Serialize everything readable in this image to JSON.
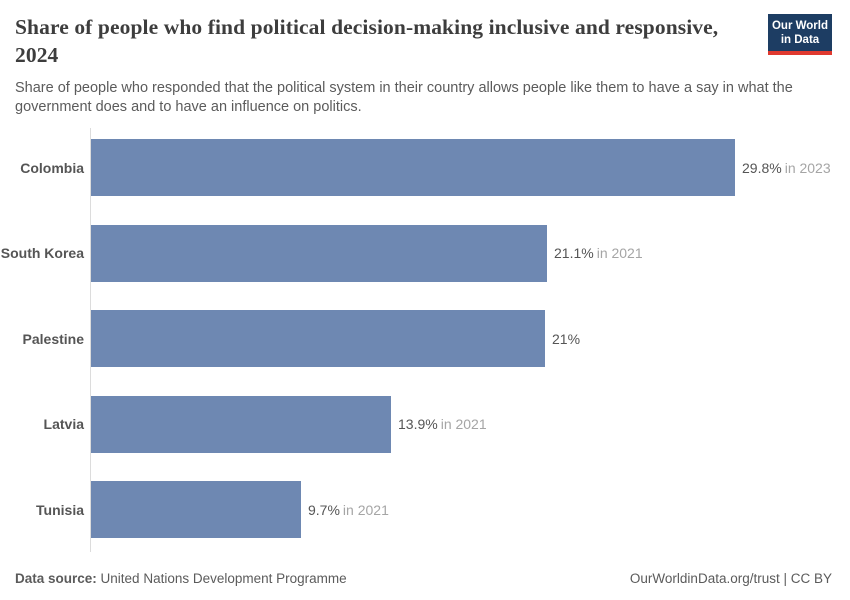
{
  "header": {
    "title": "Share of people who find political decision-making inclusive and responsive, 2024",
    "subtitle": "Share of people who responded that the political system in their country allows people like them to have a say in what the government does and to have an influence on politics.",
    "logo_line1": "Our World",
    "logo_line2": "in Data"
  },
  "chart_data": {
    "type": "bar",
    "orientation": "horizontal",
    "categories": [
      "Colombia",
      "South Korea",
      "Palestine",
      "Latvia",
      "Tunisia"
    ],
    "values": [
      29.8,
      21.1,
      21,
      13.9,
      9.7
    ],
    "value_labels": [
      "29.8%",
      "21.1%",
      "21%",
      "13.9%",
      "9.7%"
    ],
    "year_notes": [
      "in 2023",
      "in 2021",
      "",
      "in 2021",
      "in 2021"
    ],
    "unit": "%",
    "xlim": [
      0,
      29.8
    ],
    "grid": false,
    "legend": "none",
    "bar_color": "#6e88b2",
    "axis_line_color": "#dcdcdc"
  },
  "footer": {
    "source_label": "Data source:",
    "source_value": "United Nations Development Programme",
    "right_text": "OurWorldinData.org/trust | CC BY"
  }
}
